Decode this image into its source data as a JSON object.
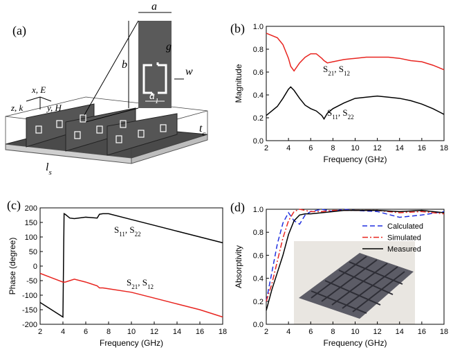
{
  "diagram": {
    "panel": "(a)",
    "a": "a",
    "b": "b",
    "g": "g",
    "w": "w",
    "a1": [
      "a",
      "1"
    ],
    "tc": [
      "t",
      "c"
    ],
    "ls": [
      "l",
      "s"
    ],
    "axes": [
      "x, E",
      "y, H",
      "z, k"
    ]
  },
  "chart_data": [
    {
      "type": "line",
      "panel": "(b)",
      "xlabel": "Frequency (GHz)",
      "ylabel": "Magnitude",
      "xlim": [
        2,
        18
      ],
      "xticks": [
        2,
        4,
        6,
        8,
        10,
        12,
        14,
        16,
        18
      ],
      "ylim": [
        0,
        1
      ],
      "yticks": [
        {
          "value": 0,
          "label": "0.0"
        },
        0.2,
        0.4,
        0.6,
        0.8,
        {
          "value": 1,
          "label": "1.0"
        }
      ],
      "x": [
        2,
        3,
        3.5,
        4,
        4.2,
        4.5,
        5,
        5.5,
        6,
        6.5,
        7,
        7.2,
        7.5,
        8,
        9,
        10,
        11,
        12,
        13,
        14,
        15,
        16,
        17,
        18
      ],
      "series": [
        {
          "color": "#e8241f",
          "style": "solid",
          "values": [
            0.94,
            0.9,
            0.84,
            0.72,
            0.65,
            0.61,
            0.68,
            0.73,
            0.76,
            0.76,
            0.72,
            0.7,
            0.68,
            0.69,
            0.71,
            0.72,
            0.73,
            0.73,
            0.73,
            0.72,
            0.7,
            0.69,
            0.66,
            0.62
          ]
        },
        {
          "color": "#000000",
          "style": "solid",
          "values": [
            0.22,
            0.3,
            0.37,
            0.45,
            0.47,
            0.44,
            0.37,
            0.31,
            0.28,
            0.26,
            0.22,
            0.19,
            0.24,
            0.28,
            0.33,
            0.37,
            0.38,
            0.39,
            0.38,
            0.37,
            0.35,
            0.32,
            0.28,
            0.23
          ]
        }
      ],
      "annotations": [
        [
          "S",
          "21",
          ", S",
          "12"
        ],
        [
          "S",
          "11",
          ", S",
          "22"
        ]
      ]
    },
    {
      "type": "line",
      "panel": "(c)",
      "xlabel": "Frequency (GHz)",
      "ylabel": "Phase (degree)",
      "xlim": [
        2,
        18
      ],
      "xticks": [
        2,
        4,
        6,
        8,
        10,
        12,
        14,
        16,
        18
      ],
      "ylim": [
        -200,
        200
      ],
      "yticks": [
        -200,
        -150,
        -100,
        -50,
        0,
        50,
        100,
        150,
        200
      ],
      "x": [
        2,
        3,
        4,
        4.1,
        4.2,
        4.6,
        5,
        6,
        7,
        7.2,
        7.5,
        8,
        10,
        12,
        14,
        16,
        18
      ],
      "series": [
        {
          "color": "#000000",
          "style": "solid",
          "values": [
            -125,
            -150,
            -175,
            180,
            178,
            165,
            163,
            168,
            165,
            178,
            180,
            180,
            160,
            140,
            120,
            100,
            80
          ]
        },
        {
          "color": "#e8241f",
          "style": "solid",
          "values": [
            -25,
            -40,
            -55,
            -55,
            -55,
            -50,
            -45,
            -55,
            -68,
            -75,
            -75,
            -78,
            -90,
            -110,
            -130,
            -150,
            -175
          ]
        }
      ],
      "annotations": [
        [
          "S",
          "11",
          ", S",
          "22"
        ],
        [
          "S",
          "21",
          ", S",
          "12"
        ]
      ]
    },
    {
      "type": "line",
      "panel": "(d)",
      "xlabel": "Frequency (GHz)",
      "ylabel": "Absorptivity",
      "xlim": [
        2,
        18
      ],
      "xticks": [
        2,
        4,
        6,
        8,
        10,
        12,
        14,
        16,
        18
      ],
      "ylim": [
        0,
        1
      ],
      "yticks": [
        {
          "value": 0,
          "label": "0.0"
        },
        0.2,
        0.4,
        0.6,
        0.8,
        {
          "value": 1,
          "label": "1.0"
        }
      ],
      "legend": "right",
      "x": [
        2,
        2.5,
        3,
        3.5,
        4,
        4.5,
        5,
        5.5,
        6,
        7,
        8,
        9,
        10,
        12,
        14,
        16,
        18
      ],
      "series": [
        {
          "name": "Calculated",
          "color": "#1f2fe0",
          "style": "dashed",
          "values": [
            0.2,
            0.45,
            0.7,
            0.88,
            0.97,
            0.9,
            0.87,
            0.95,
            0.98,
            1.0,
            0.98,
            1.0,
            0.99,
            0.98,
            0.93,
            0.95,
            0.98
          ]
        },
        {
          "name": "Simulated",
          "color": "#e8241f",
          "style": "dashdot",
          "values": [
            0.2,
            0.35,
            0.55,
            0.75,
            0.9,
            0.98,
            1.0,
            0.99,
            0.98,
            0.98,
            0.99,
            0.99,
            0.99,
            0.99,
            0.97,
            0.98,
            0.96
          ]
        },
        {
          "name": "Measured",
          "color": "#000000",
          "style": "solid",
          "values": [
            0.12,
            0.3,
            0.45,
            0.6,
            0.78,
            0.9,
            0.95,
            0.96,
            0.96,
            0.97,
            0.98,
            0.99,
            0.99,
            0.99,
            0.98,
            0.99,
            0.97
          ]
        }
      ]
    }
  ]
}
